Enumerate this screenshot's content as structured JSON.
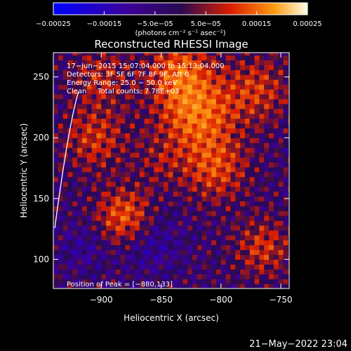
{
  "chart_data": {
    "type": "heatmap",
    "title": "Reconstructed RHESSI Image",
    "xlabel": "Heliocentric X (arcsec)",
    "ylabel": "Heliocentric Y (arcsec)",
    "xlim": [
      -940,
      -743
    ],
    "ylim": [
      76,
      270
    ],
    "xticks": [
      -900,
      -850,
      -800,
      -750
    ],
    "yticks": [
      100,
      150,
      200,
      250
    ],
    "xtick_labels": [
      "−900",
      "−850",
      "−800",
      "−750"
    ],
    "ytick_labels": [
      "100",
      "150",
      "200",
      "250"
    ],
    "colorbar": {
      "range": [
        -0.00025,
        0.00025
      ],
      "tick_values": [
        -0.00025,
        -0.00015,
        -5e-05,
        5e-05,
        0.00015,
        0.00025
      ],
      "tick_labels": [
        "−0.00025",
        "−0.00015",
        "−5.0e−05",
        "5.0e−05",
        "0.00015",
        "0.00025"
      ],
      "unit_label": "(photons cm⁻² s⁻¹ asec⁻²)"
    },
    "annotations": [
      "17−Jun−2015 15:07:04.000 to 15:13:04.000",
      "Detectors: 3F 5F 6F 7F 8F 9F, Att 0",
      "Energy Range: 25.0 − 50.0 keV",
      "Clean     Total counts: 7.78E+03"
    ],
    "peak_label": "Position of Peak = [−880,133]",
    "peak_position": [
      -880,
      133
    ],
    "blobs": [
      {
        "x": -820,
        "y": 220,
        "s": 22,
        "a": 1.0
      },
      {
        "x": -835,
        "y": 255,
        "s": 18,
        "a": 0.8
      },
      {
        "x": -805,
        "y": 175,
        "s": 18,
        "a": 0.7
      },
      {
        "x": -880,
        "y": 135,
        "s": 16,
        "a": 0.9
      },
      {
        "x": -905,
        "y": 200,
        "s": 18,
        "a": 0.6
      },
      {
        "x": -770,
        "y": 240,
        "s": 18,
        "a": 0.6
      },
      {
        "x": -765,
        "y": 110,
        "s": 16,
        "a": 0.6
      },
      {
        "x": -900,
        "y": 250,
        "s": 16,
        "a": 0.5
      },
      {
        "x": -850,
        "y": 180,
        "s": 14,
        "a": 0.3
      },
      {
        "x": -860,
        "y": 115,
        "s": 18,
        "a": -0.4
      },
      {
        "x": -915,
        "y": 110,
        "s": 14,
        "a": -0.3
      }
    ]
  },
  "timestamp": "21−May−2022 23:04"
}
